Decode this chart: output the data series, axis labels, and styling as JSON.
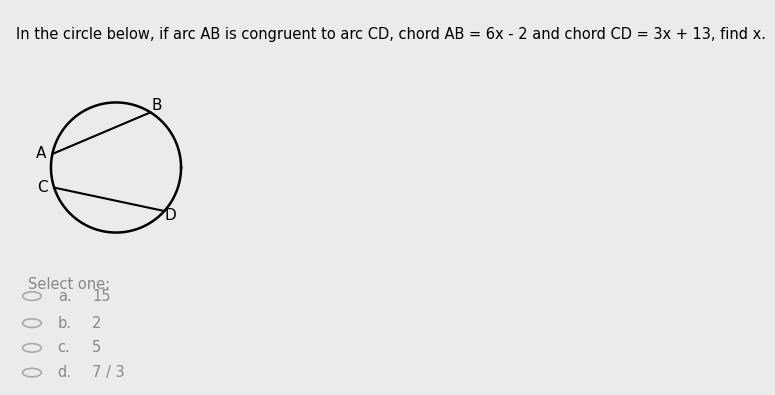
{
  "background_color": "#ebebeb",
  "header_text": "In the circle below, if arc AB is congruent to arc CD, chord AB = 6x - 2 and chord CD = 3x + 13, find x.",
  "header_bg": "#d8e84a",
  "header_fontsize": 10.5,
  "circle_box_bg": "#ffffff",
  "label_A": "A",
  "label_B": "B",
  "label_C": "C",
  "label_D": "D",
  "options_label": "Select one:",
  "options": [
    {
      "letter": "a.",
      "value": "15"
    },
    {
      "letter": "b.",
      "value": "2"
    },
    {
      "letter": "c.",
      "value": "5"
    },
    {
      "letter": "d.",
      "value": "7 / 3"
    }
  ],
  "option_fontsize": 10.5,
  "label_fontsize": 11,
  "line_color": "#000000",
  "circle_color": "#000000",
  "text_color": "#000000",
  "options_text_color": "#888888",
  "radio_color": "#aaaaaa"
}
